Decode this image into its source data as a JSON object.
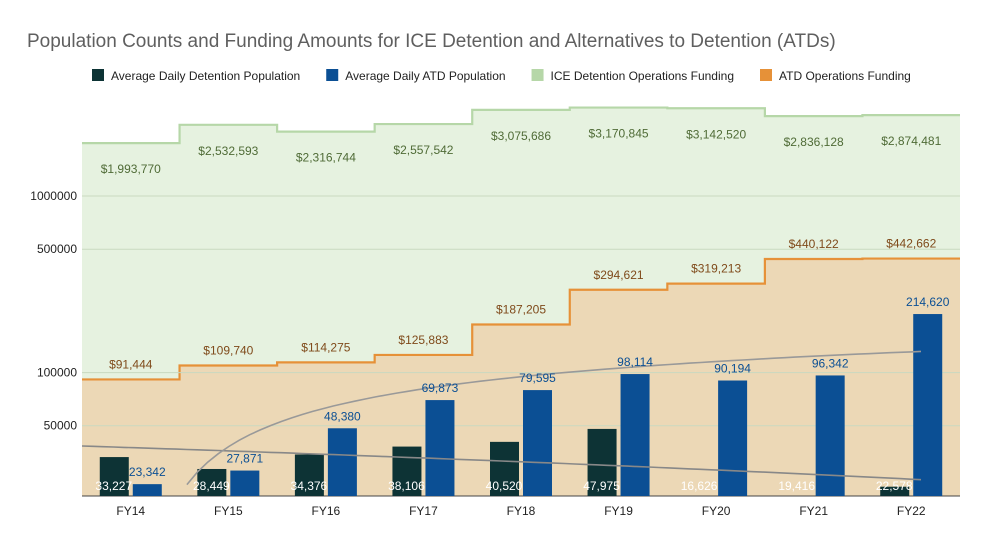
{
  "chart_data": {
    "type": "bar",
    "title": "Population Counts and Funding Amounts for ICE Detention and Alternatives to Detention (ATDs)",
    "categories": [
      "FY14",
      "FY15",
      "FY16",
      "FY17",
      "FY18",
      "FY19",
      "FY20",
      "FY21",
      "FY22"
    ],
    "y_scale": "log",
    "ylim": [
      20000,
      3500000
    ],
    "y_ticks": [
      50000,
      100000,
      500000,
      1000000
    ],
    "y_tick_labels": [
      "50000",
      "100000",
      "500000",
      "1000000"
    ],
    "grid": true,
    "legend_position": "top",
    "series": [
      {
        "name": "Average Daily Detention Population",
        "kind": "bar",
        "color": "#0d3335",
        "values": [
          33227,
          28449,
          34376,
          38106,
          40520,
          47975,
          16626,
          19416,
          22578
        ],
        "labels": [
          "33,227",
          "28,449",
          "34,376",
          "38,106",
          "40,520",
          "47,975",
          "16,626",
          "19,416",
          "22,578"
        ]
      },
      {
        "name": "Average Daily ATD Population",
        "kind": "bar",
        "color": "#0b4f94",
        "values": [
          23342,
          27871,
          48380,
          69873,
          79595,
          98114,
          90194,
          96342,
          214620
        ],
        "labels": [
          "23,342",
          "27,871",
          "48,380",
          "69,873",
          "79,595",
          "98,114",
          "90,194",
          "96,342",
          "214,620"
        ]
      },
      {
        "name": "ICE Detention Operations Funding",
        "kind": "stepped-area",
        "color": "#b6d7a8",
        "values": [
          1993770,
          2532593,
          2316744,
          2557542,
          3075686,
          3170845,
          3142520,
          2836128,
          2874481
        ],
        "labels": [
          "$1,993,770",
          "$2,532,593",
          "$2,316,744",
          "$2,557,542",
          "$3,075,686",
          "$3,170,845",
          "$3,142,520",
          "$2,836,128",
          "$2,874,481"
        ]
      },
      {
        "name": "ATD Operations Funding",
        "kind": "stepped-area",
        "color": "#e69138",
        "values": [
          91444,
          109740,
          114275,
          125883,
          187205,
          294621,
          319213,
          440122,
          442662
        ],
        "labels": [
          "$91,444",
          "$109,740",
          "$114,275",
          "$125,883",
          "$187,205",
          "$294,621",
          "$319,213",
          "$440,122",
          "$442,662"
        ]
      }
    ],
    "trendlines": [
      {
        "series": "Average Daily Detention Population",
        "kind": "linear",
        "color": "#888888"
      },
      {
        "series": "Average Daily ATD Population",
        "kind": "logarithmic",
        "color": "#999999"
      }
    ],
    "label_colors": {
      "detention_funding": "#4f6b36",
      "atd_funding": "#7f4a1a",
      "detention_pop": "#ffffff",
      "atd_pop": "#0b4f94"
    }
  }
}
